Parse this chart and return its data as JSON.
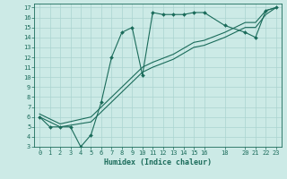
{
  "xlabel": "Humidex (Indice chaleur)",
  "bg_color": "#cceae6",
  "grid_color": "#aad4d0",
  "line_color": "#1a6b5a",
  "xlim": [
    -0.5,
    23.5
  ],
  "ylim": [
    3,
    17.4
  ],
  "xticks": [
    0,
    1,
    2,
    3,
    4,
    5,
    6,
    7,
    8,
    9,
    10,
    11,
    12,
    13,
    14,
    15,
    16,
    18,
    20,
    21,
    22,
    23
  ],
  "yticks": [
    3,
    4,
    5,
    6,
    7,
    8,
    9,
    10,
    11,
    12,
    13,
    14,
    15,
    16,
    17
  ],
  "line1_x": [
    0,
    1,
    2,
    3,
    4,
    5,
    6,
    7,
    8,
    9,
    10,
    11,
    12,
    13,
    14,
    15,
    16,
    18,
    20,
    21,
    22,
    23
  ],
  "line1_y": [
    6,
    5,
    5,
    5,
    3,
    4.2,
    7.5,
    12,
    14.5,
    15,
    10.2,
    16.5,
    16.3,
    16.3,
    16.3,
    16.5,
    16.5,
    15.2,
    14.5,
    14,
    16.7,
    17
  ],
  "line2_x": [
    0,
    2,
    5,
    7,
    10,
    11,
    13,
    15,
    16,
    18,
    20,
    21,
    22,
    23
  ],
  "line2_y": [
    6,
    5,
    5.5,
    7.5,
    10.5,
    11,
    11.8,
    13,
    13.2,
    14,
    15,
    15,
    16.3,
    17
  ],
  "line3_x": [
    0,
    2,
    5,
    7,
    10,
    11,
    13,
    15,
    16,
    18,
    20,
    21,
    22,
    23
  ],
  "line3_y": [
    6.3,
    5.3,
    6,
    8,
    11,
    11.5,
    12.3,
    13.5,
    13.7,
    14.5,
    15.5,
    15.5,
    16.7,
    17
  ]
}
